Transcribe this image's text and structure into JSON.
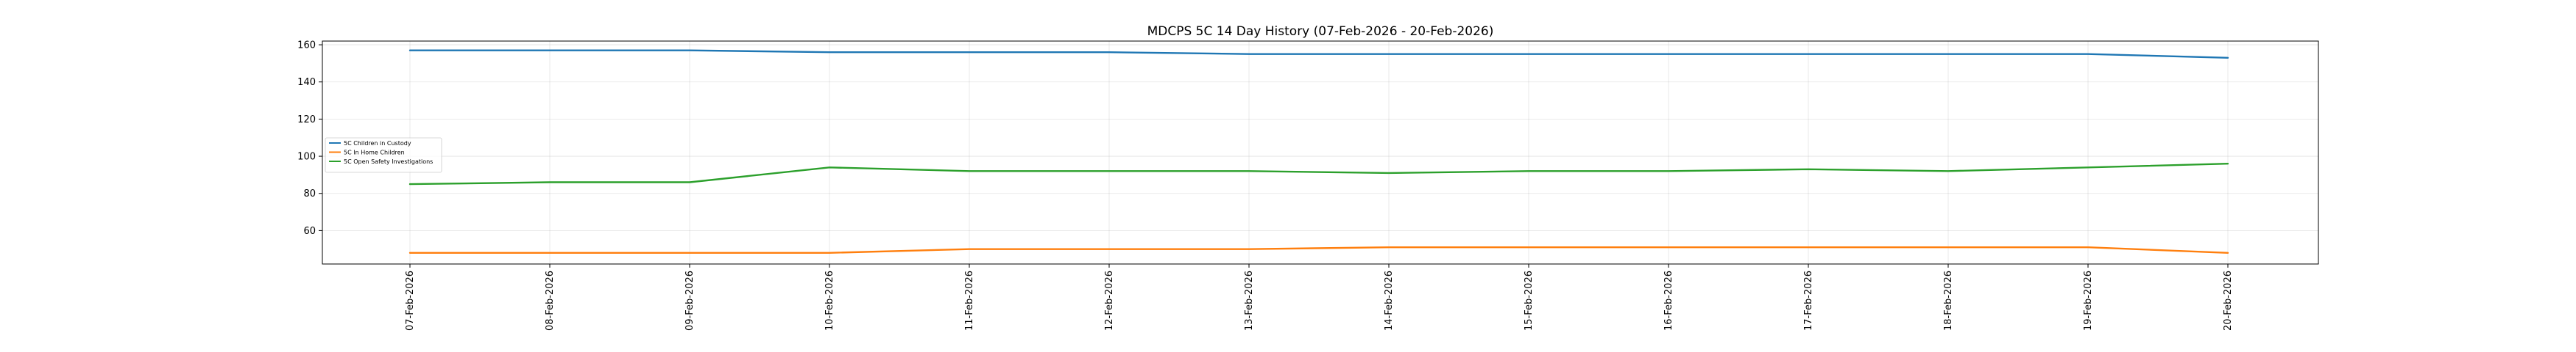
{
  "chart_data": {
    "type": "line",
    "title": "MDCPS 5C 14 Day History (07-Feb-2026 - 20-Feb-2026)",
    "xlabel": "",
    "ylabel": "",
    "categories": [
      "07-Feb-2026",
      "08-Feb-2026",
      "09-Feb-2026",
      "10-Feb-2026",
      "11-Feb-2026",
      "12-Feb-2026",
      "13-Feb-2026",
      "14-Feb-2026",
      "15-Feb-2026",
      "16-Feb-2026",
      "17-Feb-2026",
      "18-Feb-2026",
      "19-Feb-2026",
      "20-Feb-2026"
    ],
    "ylim": [
      42,
      162
    ],
    "yticks": [
      60,
      80,
      100,
      120,
      140,
      160
    ],
    "grid": true,
    "legend_position": "center-left",
    "series": [
      {
        "name": "5C Children in Custody",
        "color": "#1f77b4",
        "values": [
          157,
          157,
          157,
          156,
          156,
          156,
          155,
          155,
          155,
          155,
          155,
          155,
          155,
          153
        ]
      },
      {
        "name": "5C In Home Children",
        "color": "#ff7f0e",
        "values": [
          48,
          48,
          48,
          48,
          50,
          50,
          50,
          51,
          51,
          51,
          51,
          51,
          51,
          48
        ]
      },
      {
        "name": "5C Open Safety Investigations",
        "color": "#2ca02c",
        "values": [
          85,
          86,
          86,
          94,
          92,
          92,
          92,
          91,
          92,
          92,
          93,
          92,
          94,
          96
        ]
      }
    ]
  }
}
